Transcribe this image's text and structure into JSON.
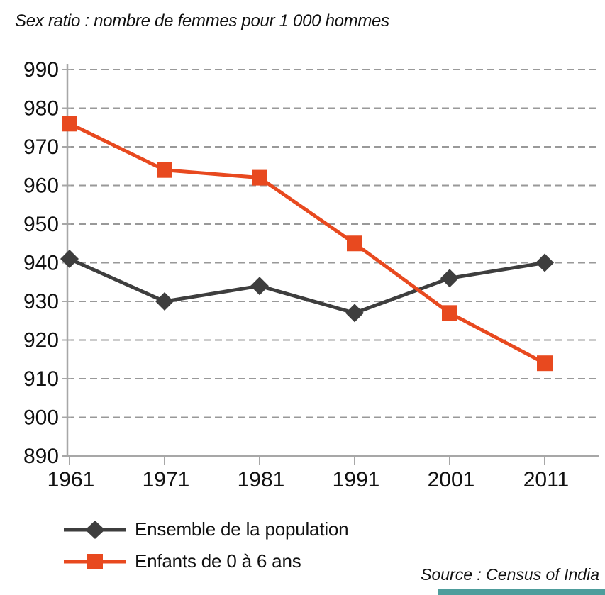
{
  "title": "Sex ratio : nombre de femmes pour 1 000 hommes",
  "source": "Source : Census of India",
  "colors": {
    "axis": "#a7a7a7",
    "grid": "#999999",
    "text": "#111111",
    "background": "#ffffff",
    "accent_bar": "#4e9d9c"
  },
  "chart_data": {
    "type": "line",
    "title": "Sex ratio : nombre de femmes pour 1 000 hommes",
    "x": [
      "1961",
      "1971",
      "1981",
      "1991",
      "2001",
      "2011"
    ],
    "series": [
      {
        "name": "Ensemble de la population",
        "marker": "diamond",
        "color": "#3e3e3e",
        "values": [
          941,
          930,
          934,
          927,
          936,
          940
        ]
      },
      {
        "name": "Enfants de 0 à 6 ans",
        "marker": "square",
        "color": "#e8491f",
        "values": [
          976,
          964,
          962,
          945,
          927,
          914
        ]
      }
    ],
    "ylim": [
      890,
      990
    ],
    "ytick_step": 10,
    "grid": "horizontal-dashed",
    "legend_position": "bottom-left"
  }
}
